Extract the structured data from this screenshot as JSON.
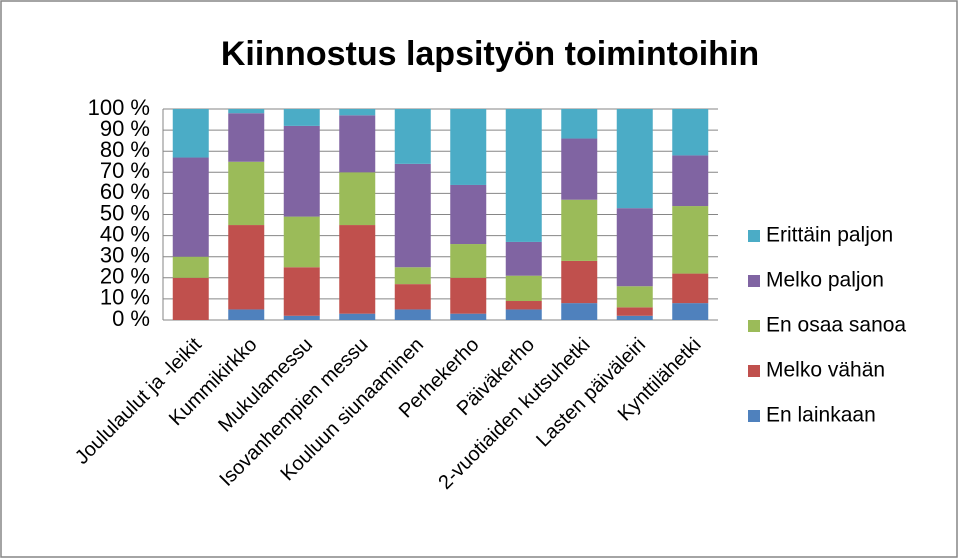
{
  "chart_data": {
    "type": "stacked_bar",
    "title": "Kiinnostus lapsityön toimintoihin",
    "categories": [
      "Joululaulut ja -leikit",
      "Kummikirkko",
      "Mukulamessu",
      "Isovanhempien messu",
      "Kouluun siunaaminen",
      "Perhekerho",
      "Päiväkerho",
      "2-vuotiaiden kutsuhetki",
      "Lasten päiväleiri",
      "Kynttilähetki"
    ],
    "series": [
      {
        "name": "En lainkaan",
        "color": "#4f81bd",
        "values": [
          0,
          5,
          2,
          3,
          5,
          3,
          5,
          8,
          2,
          8
        ]
      },
      {
        "name": "Melko vähän",
        "color": "#c0504d",
        "values": [
          20,
          40,
          23,
          42,
          12,
          17,
          4,
          20,
          4,
          14
        ]
      },
      {
        "name": "En osaa sanoa",
        "color": "#9bbb59",
        "values": [
          10,
          30,
          24,
          25,
          8,
          16,
          12,
          29,
          10,
          32
        ]
      },
      {
        "name": "Melko paljon",
        "color": "#8064a2",
        "values": [
          47,
          23,
          43,
          27,
          49,
          28,
          16,
          29,
          37,
          24
        ]
      },
      {
        "name": "Erittäin paljon",
        "color": "#4bacc6",
        "values": [
          23,
          2,
          8,
          3,
          26,
          36,
          63,
          14,
          47,
          22
        ]
      }
    ],
    "ylim": [
      0,
      100
    ],
    "yticks": [
      {
        "value": 0,
        "label": "0 %"
      },
      {
        "value": 10,
        "label": "10 %"
      },
      {
        "value": 20,
        "label": "20 %"
      },
      {
        "value": 30,
        "label": "30 %"
      },
      {
        "value": 40,
        "label": "40 %"
      },
      {
        "value": 50,
        "label": "50 %"
      },
      {
        "value": 60,
        "label": "60 %"
      },
      {
        "value": 70,
        "label": "70 %"
      },
      {
        "value": 80,
        "label": "80 %"
      },
      {
        "value": 90,
        "label": "90 %"
      },
      {
        "value": 100,
        "label": "100 %"
      }
    ],
    "grid": true,
    "legend": "right"
  }
}
